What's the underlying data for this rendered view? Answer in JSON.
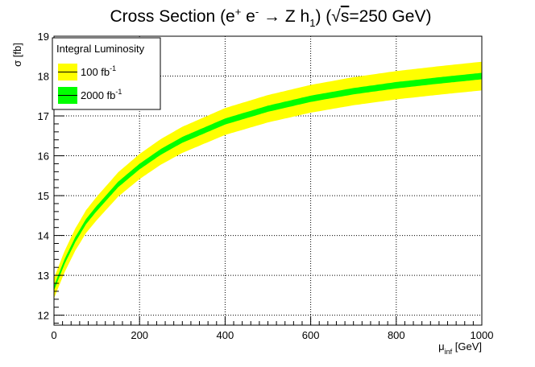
{
  "chart_data": {
    "type": "line",
    "title": {
      "main": "Cross Section (e",
      "sup1": "+",
      "mid1": " e",
      "sup2": "-",
      "mid2": " → Z h",
      "sub1": "1",
      "mid3": ") (",
      "sqrt": "√",
      "overline": "s",
      "end": "=250 GeV)"
    },
    "xlabel": {
      "main": "μ",
      "sub": "inf",
      "units": " [GeV]"
    },
    "ylabel": "σ [fb]",
    "xlim": [
      0,
      1000
    ],
    "ylim": [
      11.75,
      19.0
    ],
    "x_ticks": [
      0,
      200,
      400,
      600,
      800,
      1000
    ],
    "x_tick_labels": [
      "0",
      "200",
      "400",
      "600",
      "800",
      "1000"
    ],
    "y_ticks": [
      12,
      13,
      14,
      15,
      16,
      17,
      18,
      19
    ],
    "y_tick_labels": [
      "12",
      "13",
      "14",
      "15",
      "16",
      "17",
      "18",
      "19"
    ],
    "grid": true,
    "legend": {
      "placement": "top-left",
      "header": "Integral Luminosity",
      "entries": [
        {
          "label": "100 fb",
          "sup": "-1",
          "fill": "#ffff00"
        },
        {
          "label": "2000 fb",
          "sup": "-1",
          "fill": "#00ff00"
        }
      ]
    },
    "central_curve": {
      "x": [
        0,
        25,
        50,
        75,
        100,
        150,
        200,
        250,
        300,
        400,
        500,
        600,
        700,
        800,
        900,
        1000
      ],
      "y": [
        12.68,
        13.35,
        13.9,
        14.35,
        14.68,
        15.28,
        15.73,
        16.1,
        16.4,
        16.86,
        17.18,
        17.43,
        17.62,
        17.77,
        17.89,
        18.0
      ]
    },
    "series": [
      {
        "fill": "#ffff00",
        "relative_half_width": 0.02
      },
      {
        "fill": "#00ff00",
        "relative_half_width": 0.0045
      }
    ]
  }
}
